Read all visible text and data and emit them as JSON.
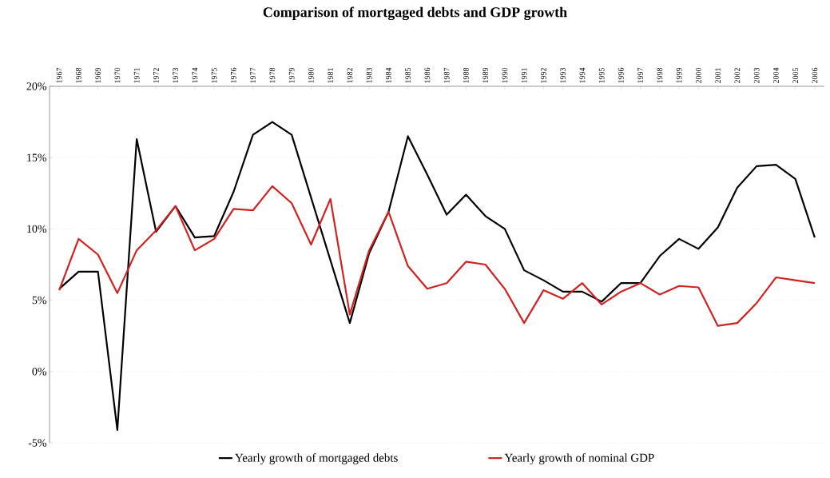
{
  "chart_data": {
    "type": "line",
    "title": "Comparison of mortgaged debts and GDP growth",
    "categories": [
      "1967",
      "1968",
      "1969",
      "1970",
      "1971",
      "1972",
      "1973",
      "1974",
      "1975",
      "1976",
      "1977",
      "1978",
      "1979",
      "1980",
      "1981",
      "1982",
      "1983",
      "1984",
      "1985",
      "1986",
      "1987",
      "1988",
      "1989",
      "1990",
      "1991",
      "1992",
      "1993",
      "1994",
      "1995",
      "1996",
      "1997",
      "1998",
      "1999",
      "2000",
      "2001",
      "2002",
      "2003",
      "2004",
      "2005",
      "2006"
    ],
    "series": [
      {
        "name": "Yearly growth of mortgaged debts",
        "color": "#000000",
        "values": [
          5.8,
          7.0,
          7.0,
          -4.1,
          16.3,
          9.8,
          11.6,
          9.4,
          9.5,
          12.6,
          16.6,
          17.5,
          16.6,
          12.2,
          7.8,
          3.4,
          8.3,
          11.2,
          16.5,
          13.8,
          11.0,
          12.4,
          10.9,
          10.0,
          7.1,
          6.4,
          5.6,
          5.6,
          4.9,
          6.2,
          6.2,
          8.1,
          9.3,
          8.6,
          10.1,
          12.9,
          14.4,
          14.5,
          13.5,
          9.4
        ]
      },
      {
        "name": "Yearly growth of nominal GDP",
        "color": "#d42020",
        "values": [
          5.7,
          9.3,
          8.2,
          5.5,
          8.5,
          9.9,
          11.6,
          8.5,
          9.3,
          11.4,
          11.3,
          13.0,
          11.8,
          8.9,
          12.1,
          4.0,
          8.5,
          11.2,
          7.4,
          5.8,
          6.2,
          7.7,
          7.5,
          5.8,
          3.4,
          5.7,
          5.1,
          6.2,
          4.7,
          5.6,
          6.2,
          5.4,
          6.0,
          5.9,
          3.2,
          3.4,
          4.8,
          6.6,
          6.4,
          6.2
        ]
      }
    ],
    "ylim": [
      -5,
      20
    ],
    "yticks": [
      {
        "value": -5,
        "label": "-5%"
      },
      {
        "value": 0,
        "label": "0%"
      },
      {
        "value": 5,
        "label": "5%"
      },
      {
        "value": 10,
        "label": "10%"
      },
      {
        "value": 15,
        "label": "15%"
      },
      {
        "value": 20,
        "label": "20%"
      }
    ],
    "grid": "y",
    "legend": "bottom"
  }
}
